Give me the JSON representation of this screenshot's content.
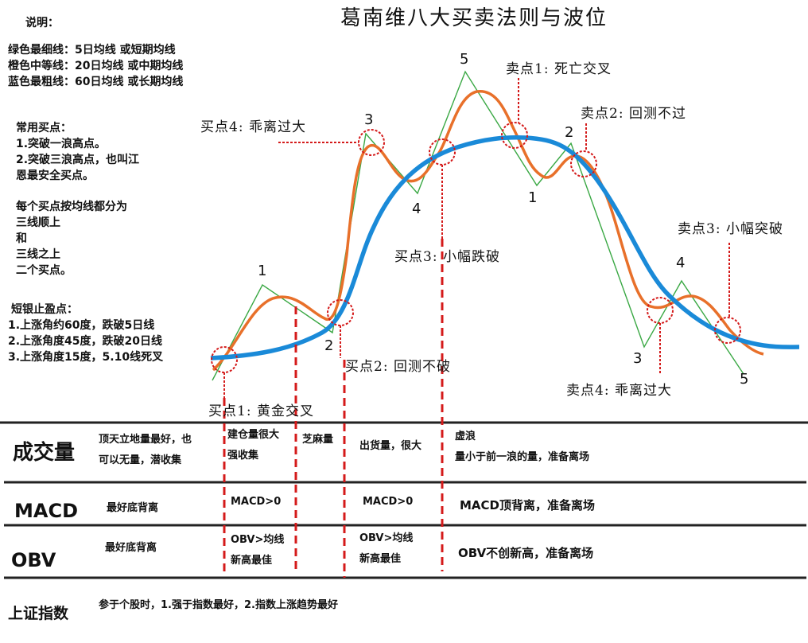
{
  "title": "葛南维八大买卖法则与波位",
  "legend": {
    "heading": "说明：",
    "lines": [
      "绿色最细线：5日均线 或短期均线",
      "橙色中等线：20日均线 或中期均线",
      "蓝色最粗线：60日均线 或长期均线"
    ]
  },
  "buy_notes": {
    "heading": "常用买点：",
    "lines": [
      "1.突破一浪高点。",
      "2.突破三浪高点，也叫江",
      "恩最安全买点。"
    ]
  },
  "buy_categories": {
    "lines": [
      "每个买点按均线都分为",
      "三线顺上",
      "和",
      "三线之上",
      "二个买点。"
    ]
  },
  "profit_notes": {
    "heading": "短银止盈点：",
    "lines": [
      "1.上涨角约60度，跌破5日线",
      "2.上涨角度45度，跌破20日线",
      "3.上涨角度15度，5.10线死叉"
    ]
  },
  "annotations": {
    "buy1": "买点1: 黄金交叉",
    "buy2": "买点2: 回测不破",
    "buy3": "买点3: 小幅跌破",
    "buy4": "买点4: 乖离过大",
    "sell1": "卖点1: 死亡交叉",
    "sell2": "卖点2: 回测不过",
    "sell3": "卖点3: 小幅突破",
    "sell4": "卖点4: 乖离过大"
  },
  "wave_labels": {
    "up1": "1",
    "up2": "2",
    "up3": "3",
    "up4": "4",
    "up5": "5",
    "down1": "1",
    "down2": "2",
    "down3": "3",
    "down4": "4",
    "down5": "5"
  },
  "colors": {
    "ma5": "#3aa844",
    "ma20": "#e8702a",
    "ma60": "#1a8ad8",
    "marker": "#d41a1a",
    "rule": "#222222"
  },
  "table": {
    "volume": {
      "label": "成交量",
      "c1": [
        "顶天立地量最好，也",
        "可以无量，潜收集"
      ],
      "c2": [
        "建仓量很大",
        "强收集"
      ],
      "c3": "芝麻量",
      "c4": "出货量，很大",
      "c5": [
        "虚浪",
        "量小于前一浪的量，准备离场"
      ]
    },
    "macd": {
      "label": "MACD",
      "c1": "最好底背离",
      "c2": "MACD>0",
      "c4": "MACD>0",
      "c5": "MACD顶背离，准备离场"
    },
    "obv": {
      "label": "OBV",
      "c1": "最好底背离",
      "c2": [
        "OBV>均线",
        "新高最佳"
      ],
      "c4": [
        "OBV>均线",
        "新高最佳"
      ],
      "c5": "OBV不创新高，准备离场"
    },
    "index": {
      "label": "上证指数",
      "c1": "参于个股时，1.强于指数最好，2.指数上涨趋势最好"
    }
  }
}
